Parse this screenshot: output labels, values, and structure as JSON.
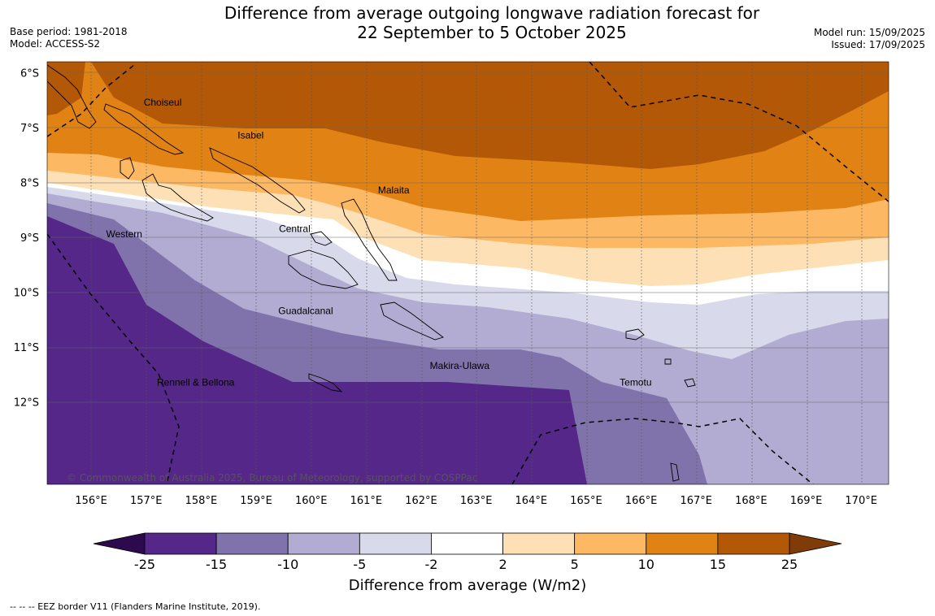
{
  "title_line1": "Difference from average outgoing longwave radiation forecast for",
  "title_line2": "22 September to 5 October 2025",
  "base_period": "Base period: 1981-2018",
  "model": "Model: ACCESS-S2",
  "model_run": "Model run: 15/09/2025",
  "issued": "Issued: 17/09/2025",
  "copyright": "© Commonwealth of Australia 2025, Bureau of Meteorology, supported by COSPPac",
  "footnote": "--  --  -- EEZ border V11 (Flanders Marine Institute, 2019).",
  "map": {
    "lon_range": [
      155.2,
      170.5
    ],
    "lat_range": [
      -13.5,
      -5.8
    ],
    "lon_ticks": [
      "156°E",
      "157°E",
      "158°E",
      "159°E",
      "160°E",
      "161°E",
      "162°E",
      "163°E",
      "164°E",
      "165°E",
      "166°E",
      "167°E",
      "168°E",
      "169°E",
      "170°E"
    ],
    "lat_ticks": [
      "6°S",
      "7°S",
      "8°S",
      "9°S",
      "10°S",
      "11°S",
      "12°S"
    ],
    "province_labels": [
      {
        "name": "Choiseul",
        "lon": 157.3,
        "lat": -6.6
      },
      {
        "name": "Isabel",
        "lon": 158.9,
        "lat": -7.2
      },
      {
        "name": "Malaita",
        "lon": 161.5,
        "lat": -8.2
      },
      {
        "name": "Central",
        "lon": 159.7,
        "lat": -8.9
      },
      {
        "name": "Western",
        "lon": 156.6,
        "lat": -9.0
      },
      {
        "name": "Guadalcanal",
        "lon": 159.9,
        "lat": -10.4
      },
      {
        "name": "Makira-Ulawa",
        "lon": 162.7,
        "lat": -11.4
      },
      {
        "name": "Temotu",
        "lon": 165.9,
        "lat": -11.7
      },
      {
        "name": "Rennell & Bellona",
        "lon": 157.9,
        "lat": -11.7
      }
    ]
  },
  "colorbar": {
    "label": "Difference from average (W/m2)",
    "ticks": [
      "-25",
      "-15",
      "-10",
      "-5",
      "-2",
      "2",
      "5",
      "10",
      "15",
      "25"
    ],
    "under_color": "#2d0a4e",
    "over_color": "#7f3b08",
    "colors": [
      "#542788",
      "#8073ac",
      "#b2abd2",
      "#d8daeb",
      "#ffffff",
      "#fee0b6",
      "#fdb863",
      "#e08214",
      "#b35806"
    ]
  }
}
